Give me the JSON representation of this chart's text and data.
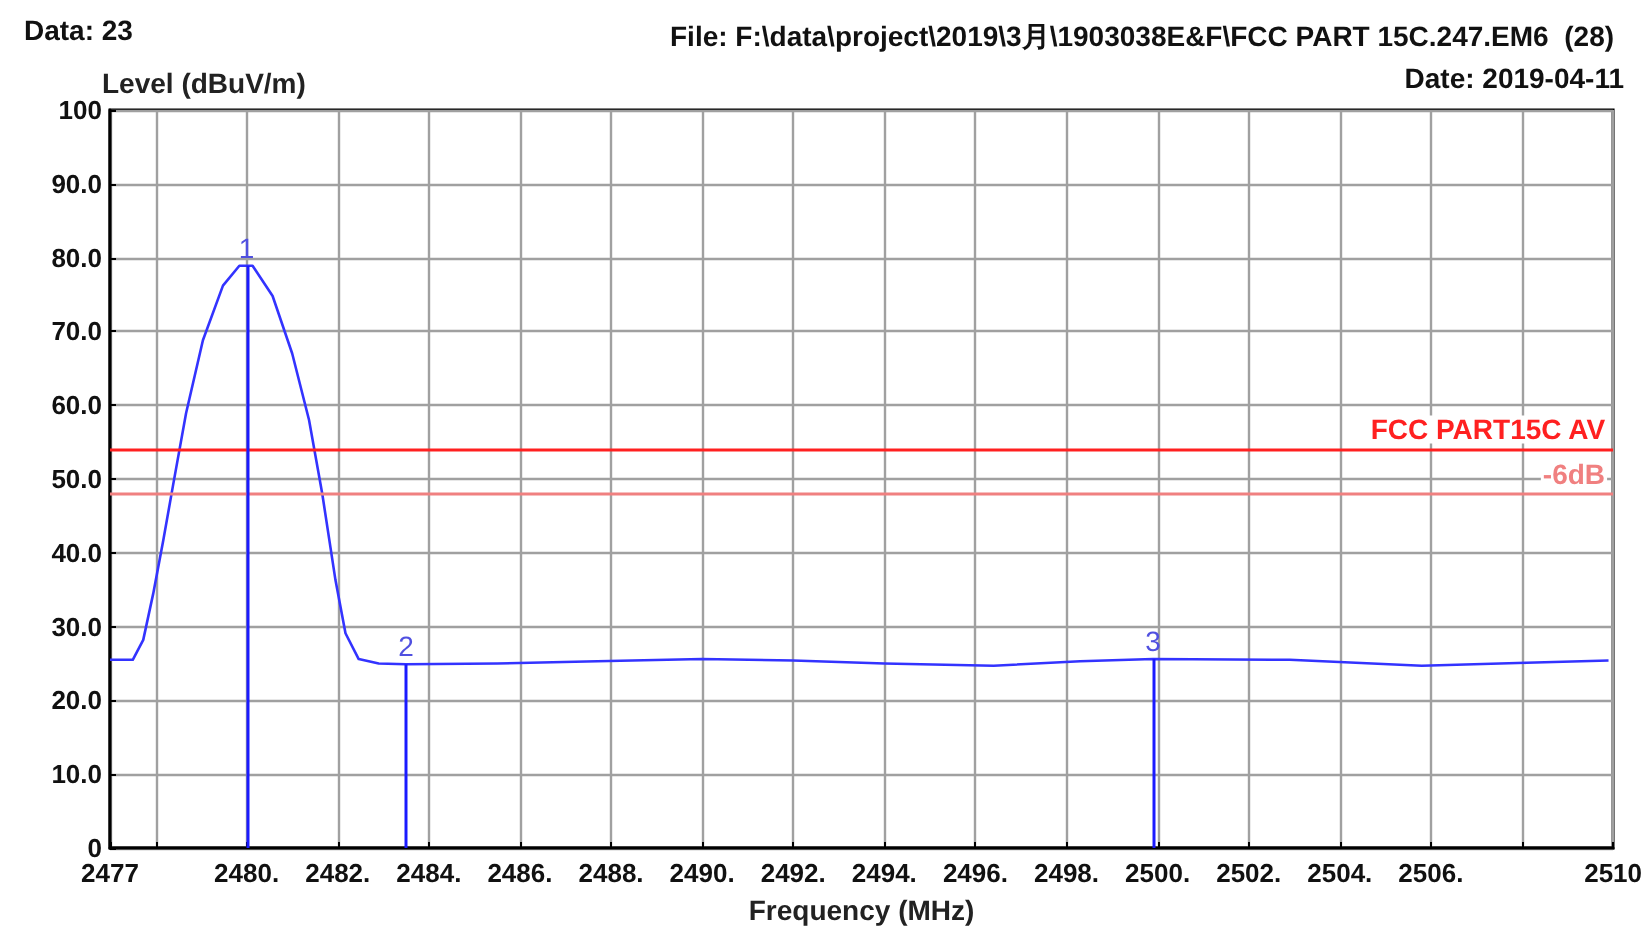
{
  "chart_data": {
    "type": "line",
    "title": "File: F:\\data\\project\\2019\\3月\\1903038E&F\\FCC PART 15C.247.EM6  (28)",
    "xlabel": "Frequency (MHz)",
    "ylabel": "Level (dBuV/m)",
    "annotations": [
      "Data: 23",
      "Date: 2019-04-11",
      {
        "text": "1",
        "x": 2480.0,
        "y": 78.9
      },
      {
        "text": "2",
        "x": 2483.5,
        "y": 24.9
      },
      {
        "text": "3",
        "x": 2499.9,
        "y": 25.6
      }
    ],
    "x": [
      2477.0,
      2477.5,
      2477.73,
      2477.95,
      2478.17,
      2478.38,
      2478.67,
      2479.04,
      2479.48,
      2479.84,
      2480.13,
      2480.57,
      2481.0,
      2481.37,
      2481.66,
      2481.95,
      2482.17,
      2482.46,
      2482.9,
      2483.5,
      2485.5,
      2487.7,
      2490.0,
      2492.0,
      2494.0,
      2496.4,
      2498.3,
      2499.9,
      2502.9,
      2505.8,
      2508.1,
      2509.9
    ],
    "series": [
      {
        "color": "#3333ff",
        "values": [
          25.5,
          25.5,
          28.2,
          34.5,
          41.7,
          49.0,
          58.9,
          68.8,
          76.2,
          78.9,
          78.9,
          74.8,
          67.0,
          58.0,
          48.0,
          36.3,
          29.1,
          25.6,
          25.0,
          24.9,
          25.0,
          25.3,
          25.6,
          25.4,
          25.0,
          24.7,
          25.3,
          25.6,
          25.5,
          24.7,
          25.1,
          25.4
        ]
      }
    ],
    "xlim": [
      2477,
      2510
    ],
    "xticks": [
      {
        "value": 2477,
        "label": "2477"
      },
      {
        "value": 2478,
        "label": null
      },
      {
        "value": 2480,
        "label": "2480."
      },
      {
        "value": 2482,
        "label": "2482."
      },
      {
        "value": 2484,
        "label": "2484."
      },
      {
        "value": 2486,
        "label": "2486."
      },
      {
        "value": 2488,
        "label": "2488."
      },
      {
        "value": 2490,
        "label": "2490."
      },
      {
        "value": 2492,
        "label": "2492."
      },
      {
        "value": 2494,
        "label": "2494."
      },
      {
        "value": 2496,
        "label": "2496."
      },
      {
        "value": 2498,
        "label": "2498."
      },
      {
        "value": 2500,
        "label": "2500."
      },
      {
        "value": 2502,
        "label": "2502."
      },
      {
        "value": 2504,
        "label": "2504."
      },
      {
        "value": 2506,
        "label": "2506."
      },
      {
        "value": 2508,
        "label": null
      },
      {
        "value": 2510,
        "label": "2510"
      }
    ],
    "ylim": [
      0,
      100
    ],
    "yticks": [
      {
        "value": 0,
        "label": "0"
      },
      {
        "value": 10,
        "label": "10.0"
      },
      {
        "value": 20,
        "label": "20.0"
      },
      {
        "value": 30,
        "label": "30.0"
      },
      {
        "value": 40,
        "label": "40.0"
      },
      {
        "value": 50,
        "label": "50.0"
      },
      {
        "value": 60,
        "label": "60.0"
      },
      {
        "value": 70,
        "label": "70.0"
      },
      {
        "value": 80,
        "label": "80.0"
      },
      {
        "value": 90,
        "label": "90.0"
      },
      {
        "value": 100,
        "label": "100"
      }
    ],
    "ref_lines": [
      {
        "axis": "y",
        "value": 54,
        "label": "FCC PART15C AV",
        "color": "#ff2020"
      },
      {
        "axis": "y",
        "value": 48,
        "label": "-6dB",
        "color": "#f08080"
      }
    ],
    "grid": true,
    "marker": "none",
    "line_style": "solid"
  }
}
